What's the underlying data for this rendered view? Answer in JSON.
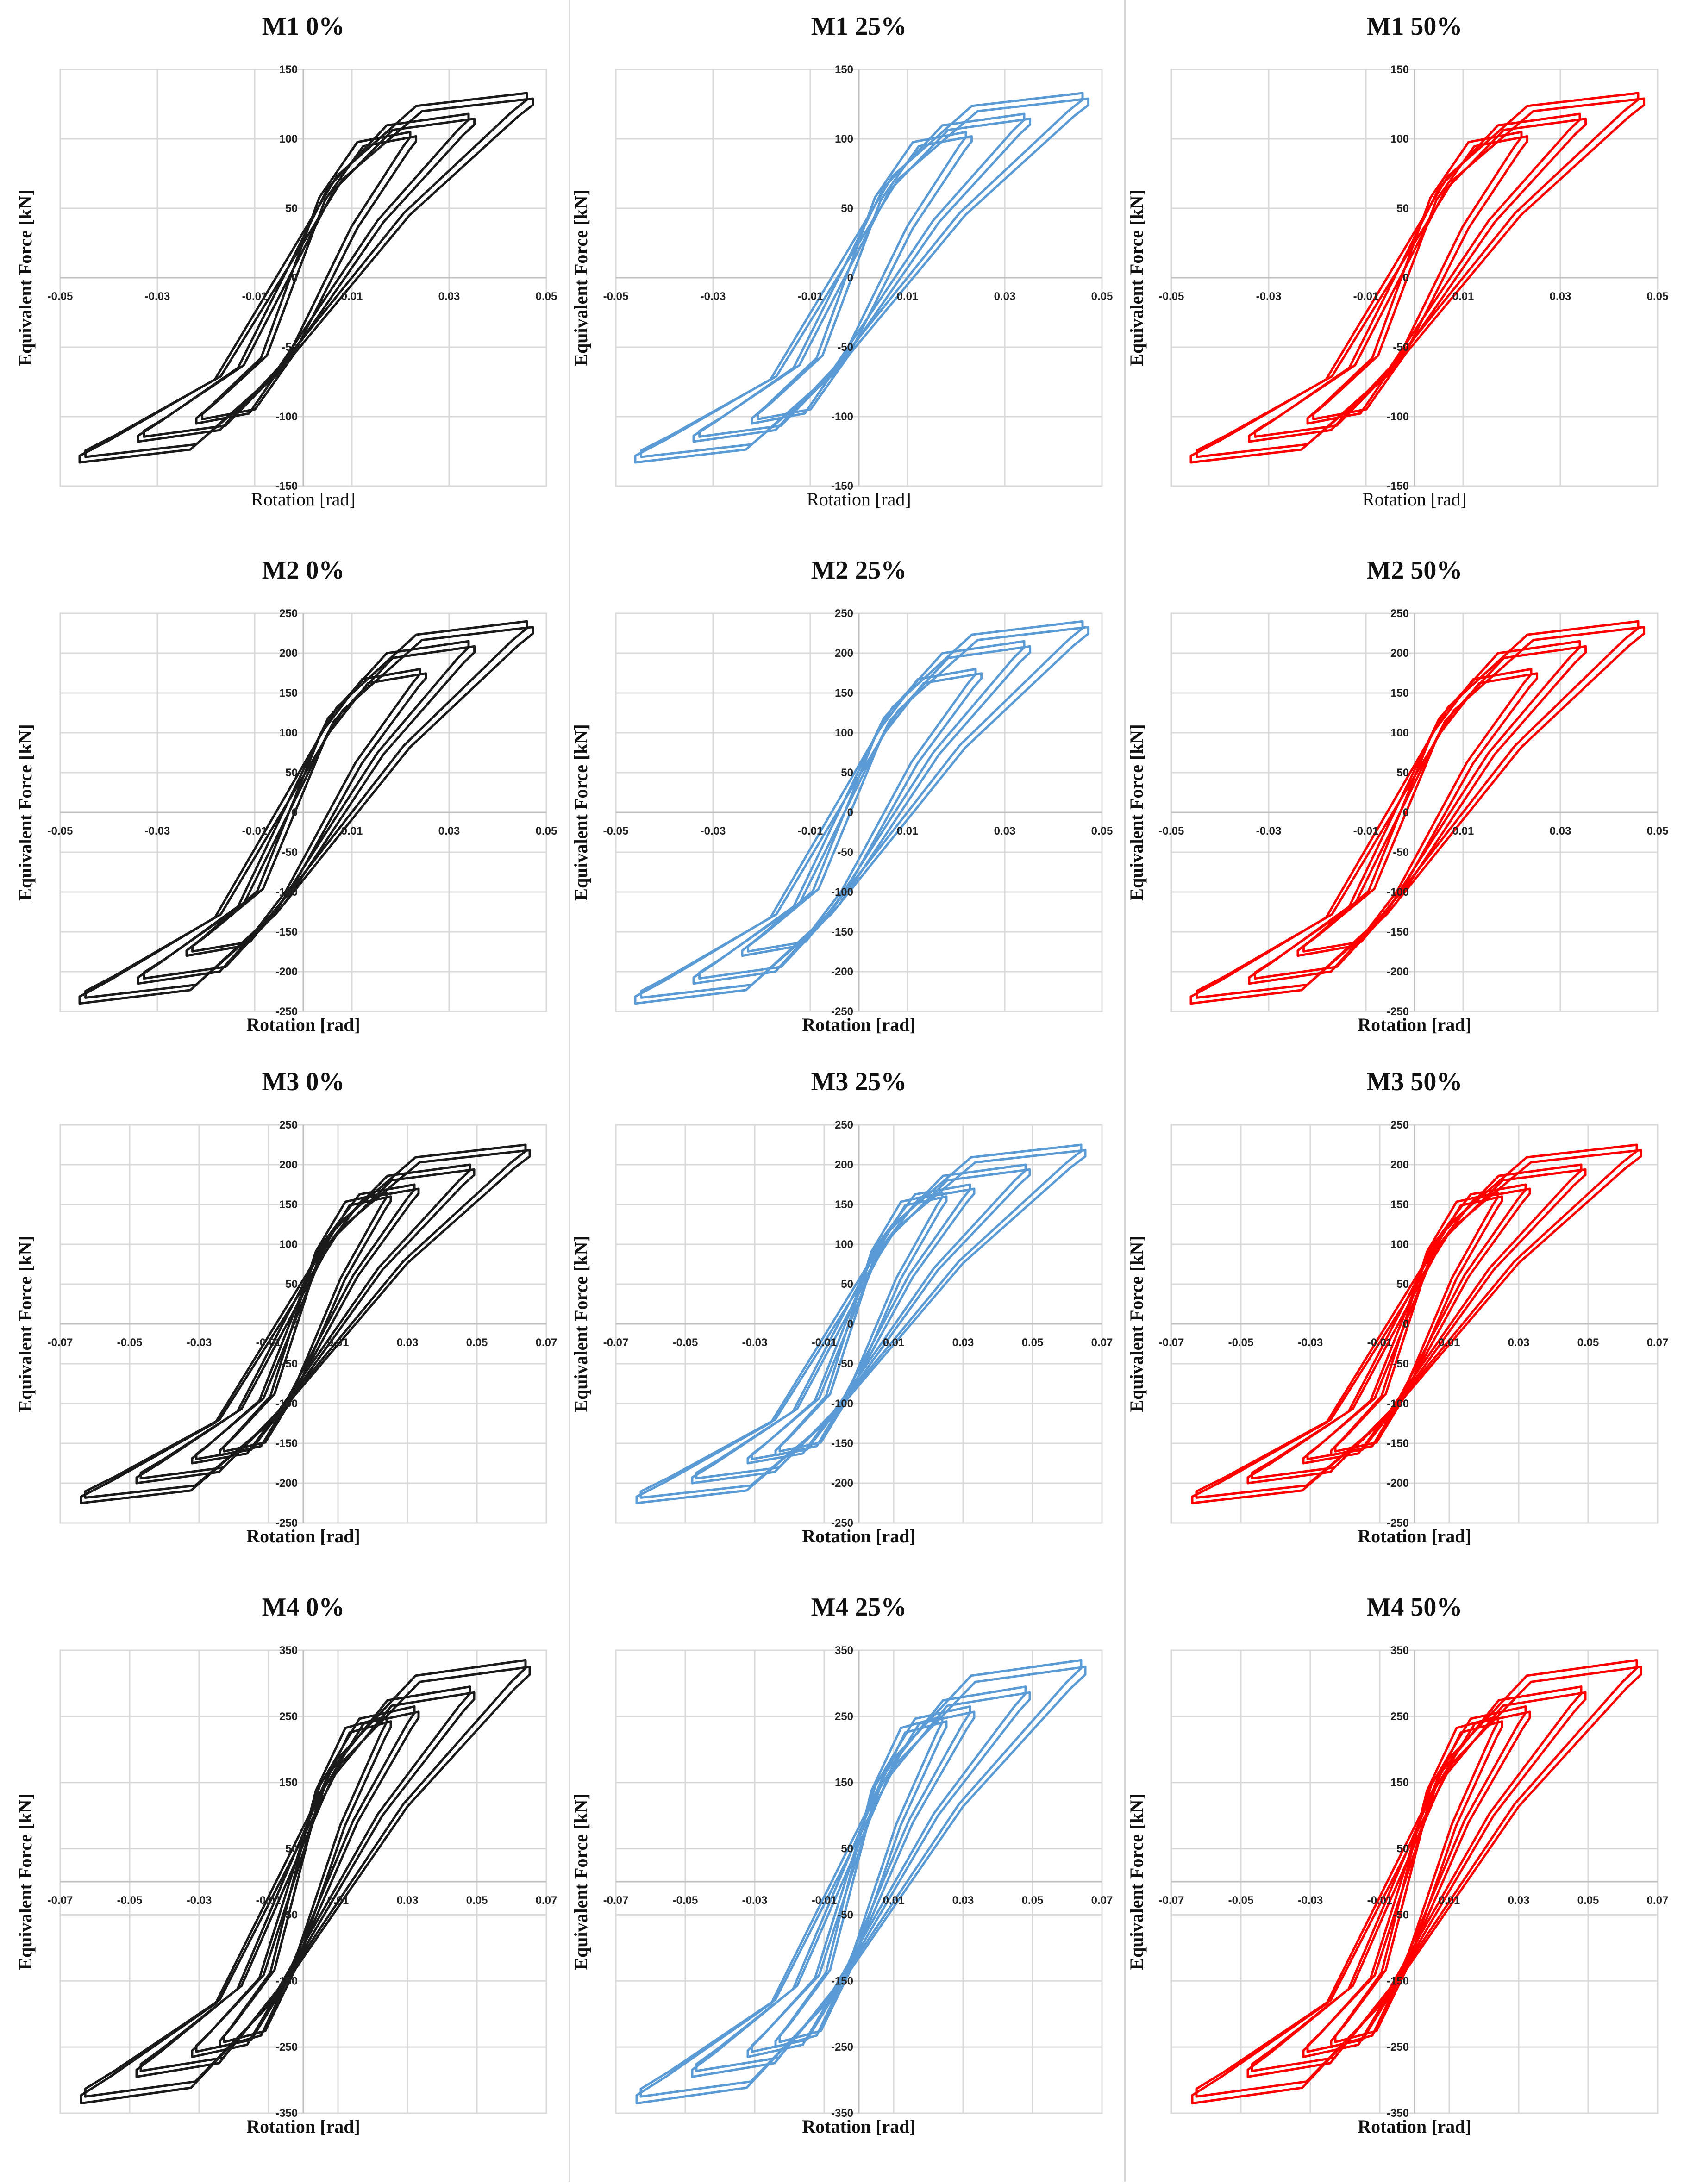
{
  "figure": {
    "colors": {
      "black": "#1a1a1a",
      "blue": "#5b9bd5",
      "red": "#ff0000",
      "grid": "#d9d9d9"
    },
    "ylabel": "Equivalent Force [kN]",
    "xlabel_bold": "Rotation [rad]",
    "xlabel_normal": "Rotation [rad]"
  },
  "chart_data": [
    {
      "type": "line",
      "title": "M1 0%",
      "model": "M1",
      "variant": "0%",
      "color": "black",
      "xlabel": "Rotation [rad]",
      "xlabel_style": "normal",
      "ylabel": "Equivalent Force [kN]",
      "xlim": [
        -0.05,
        0.05
      ],
      "ylim": [
        -150,
        150
      ],
      "xticks": [
        -0.05,
        -0.03,
        -0.01,
        0.01,
        0.03,
        0.05
      ],
      "xtick_labels": [
        "-0.05",
        "-0.03",
        "-0.01",
        "0.01",
        "0.03",
        "0.05"
      ],
      "yticks": [
        -150,
        -100,
        -50,
        0,
        50,
        100,
        150
      ],
      "ytick_labels": [
        "-150",
        "-100",
        "-50",
        "0",
        "50",
        "100",
        "150"
      ],
      "cycles": [
        {
          "amp": 0.022,
          "fmax": 105,
          "fmin": -105
        },
        {
          "amp": 0.034,
          "fmax": 118,
          "fmin": -118
        },
        {
          "amp": 0.046,
          "fmax": 133,
          "fmin": -133
        }
      ]
    },
    {
      "type": "line",
      "title": "M1 25%",
      "model": "M1",
      "variant": "25%",
      "color": "blue",
      "xlabel": "Rotation [rad]",
      "xlabel_style": "normal",
      "ylabel": "Equivalent Force [kN]",
      "xlim": [
        -0.05,
        0.05
      ],
      "ylim": [
        -150,
        150
      ],
      "xticks": [
        -0.05,
        -0.03,
        -0.01,
        0.01,
        0.03,
        0.05
      ],
      "xtick_labels": [
        "-0.05",
        "-0.03",
        "-0.01",
        "0.01",
        "0.03",
        "0.05"
      ],
      "yticks": [
        -150,
        -100,
        -50,
        0,
        50,
        100,
        150
      ],
      "ytick_labels": [
        "-150",
        "-100",
        "-50",
        "0",
        "50",
        "100",
        "150"
      ],
      "cycles": [
        {
          "amp": 0.022,
          "fmax": 105,
          "fmin": -105
        },
        {
          "amp": 0.034,
          "fmax": 118,
          "fmin": -118
        },
        {
          "amp": 0.046,
          "fmax": 133,
          "fmin": -133
        }
      ]
    },
    {
      "type": "line",
      "title": "M1 50%",
      "model": "M1",
      "variant": "50%",
      "color": "red",
      "xlabel": "Rotation [rad]",
      "xlabel_style": "normal",
      "ylabel": "Equivalent Force [kN]",
      "xlim": [
        -0.05,
        0.05
      ],
      "ylim": [
        -150,
        150
      ],
      "xticks": [
        -0.05,
        -0.03,
        -0.01,
        0.01,
        0.03,
        0.05
      ],
      "xtick_labels": [
        "-0.05",
        "-0.03",
        "-0.01",
        "0.01",
        "0.03",
        "0.05"
      ],
      "yticks": [
        -150,
        -100,
        -50,
        0,
        50,
        100,
        150
      ],
      "ytick_labels": [
        "-150",
        "-100",
        "-50",
        "0",
        "50",
        "100",
        "150"
      ],
      "cycles": [
        {
          "amp": 0.022,
          "fmax": 105,
          "fmin": -105
        },
        {
          "amp": 0.034,
          "fmax": 118,
          "fmin": -118
        },
        {
          "amp": 0.046,
          "fmax": 133,
          "fmin": -133
        }
      ]
    },
    {
      "type": "line",
      "title": "M2 0%",
      "model": "M2",
      "variant": "0%",
      "color": "black",
      "xlabel": "Rotation [rad]",
      "xlabel_style": "bold",
      "ylabel": "Equivalent Force [kN]",
      "xlim": [
        -0.05,
        0.05
      ],
      "ylim": [
        -250,
        250
      ],
      "xticks": [
        -0.05,
        -0.03,
        -0.01,
        0.01,
        0.03,
        0.05
      ],
      "xtick_labels": [
        "-0.05",
        "-0.03",
        "-0.01",
        "0.01",
        "0.03",
        "0.05"
      ],
      "yticks": [
        -250,
        -200,
        -150,
        -100,
        -50,
        0,
        50,
        100,
        150,
        200,
        250
      ],
      "ytick_labels": [
        "-250",
        "-200",
        "-150",
        "-100",
        "-50",
        "0",
        "50",
        "100",
        "150",
        "200",
        "250"
      ],
      "cycles": [
        {
          "amp": 0.024,
          "fmax": 180,
          "fmin": -180
        },
        {
          "amp": 0.034,
          "fmax": 215,
          "fmin": -215
        },
        {
          "amp": 0.046,
          "fmax": 240,
          "fmin": -240
        }
      ]
    },
    {
      "type": "line",
      "title": "M2 25%",
      "model": "M2",
      "variant": "25%",
      "color": "blue",
      "xlabel": "Rotation [rad]",
      "xlabel_style": "bold",
      "ylabel": "Equivalent Force [kN]",
      "xlim": [
        -0.05,
        0.05
      ],
      "ylim": [
        -250,
        250
      ],
      "xticks": [
        -0.05,
        -0.03,
        -0.01,
        0.01,
        0.03,
        0.05
      ],
      "xtick_labels": [
        "-0.05",
        "-0.03",
        "-0.01",
        "0.01",
        "0.03",
        "0.05"
      ],
      "yticks": [
        -250,
        -200,
        -150,
        -100,
        -50,
        0,
        50,
        100,
        150,
        200,
        250
      ],
      "ytick_labels": [
        "-250",
        "-200",
        "-150",
        "-100",
        "-50",
        "0",
        "50",
        "100",
        "150",
        "200",
        "250"
      ],
      "cycles": [
        {
          "amp": 0.024,
          "fmax": 180,
          "fmin": -180
        },
        {
          "amp": 0.034,
          "fmax": 215,
          "fmin": -215
        },
        {
          "amp": 0.046,
          "fmax": 240,
          "fmin": -240
        }
      ]
    },
    {
      "type": "line",
      "title": "M2 50%",
      "model": "M2",
      "variant": "50%",
      "color": "red",
      "xlabel": "Rotation [rad]",
      "xlabel_style": "bold",
      "ylabel": "Equivalent Force [kN]",
      "xlim": [
        -0.05,
        0.05
      ],
      "ylim": [
        -250,
        250
      ],
      "xticks": [
        -0.05,
        -0.03,
        -0.01,
        0.01,
        0.03,
        0.05
      ],
      "xtick_labels": [
        "-0.05",
        "-0.03",
        "-0.01",
        "0.01",
        "0.03",
        "0.05"
      ],
      "yticks": [
        -250,
        -200,
        -150,
        -100,
        -50,
        0,
        50,
        100,
        150,
        200,
        250
      ],
      "ytick_labels": [
        "-250",
        "-200",
        "-150",
        "-100",
        "-50",
        "0",
        "50",
        "100",
        "150",
        "200",
        "250"
      ],
      "cycles": [
        {
          "amp": 0.024,
          "fmax": 180,
          "fmin": -180
        },
        {
          "amp": 0.034,
          "fmax": 215,
          "fmin": -215
        },
        {
          "amp": 0.046,
          "fmax": 240,
          "fmin": -240
        }
      ]
    },
    {
      "type": "line",
      "title": "M3 0%",
      "model": "M3",
      "variant": "0%",
      "color": "black",
      "xlabel": "Rotation [rad]",
      "xlabel_style": "bold",
      "ylabel": "Equivalent Force [kN]",
      "xlim": [
        -0.07,
        0.07
      ],
      "ylim": [
        -250,
        250
      ],
      "xticks": [
        -0.07,
        -0.05,
        -0.03,
        -0.01,
        0.01,
        0.03,
        0.05,
        0.07
      ],
      "xtick_labels": [
        "-0.07",
        "-0.05",
        "-0.03",
        "-0.01",
        "0.01",
        "0.03",
        "0.05",
        "0.07"
      ],
      "yticks": [
        -250,
        -200,
        -150,
        -100,
        -50,
        0,
        50,
        100,
        150,
        200,
        250
      ],
      "ytick_labels": [
        "-250",
        "-200",
        "-150",
        "-100",
        "-50",
        "0",
        "50",
        "100",
        "150",
        "200",
        "250"
      ],
      "cycles": [
        {
          "amp": 0.024,
          "fmax": 165,
          "fmin": -165
        },
        {
          "amp": 0.032,
          "fmax": 175,
          "fmin": -175
        },
        {
          "amp": 0.048,
          "fmax": 200,
          "fmin": -200
        },
        {
          "amp": 0.064,
          "fmax": 225,
          "fmin": -225
        }
      ]
    },
    {
      "type": "line",
      "title": "M3 25%",
      "model": "M3",
      "variant": "25%",
      "color": "blue",
      "xlabel": "Rotation [rad]",
      "xlabel_style": "bold",
      "ylabel": "Equivalent Force [kN]",
      "xlim": [
        -0.07,
        0.07
      ],
      "ylim": [
        -250,
        250
      ],
      "xticks": [
        -0.07,
        -0.05,
        -0.03,
        -0.01,
        0.01,
        0.03,
        0.05,
        0.07
      ],
      "xtick_labels": [
        "-0.07",
        "-0.05",
        "-0.03",
        "-0.01",
        "0.01",
        "0.03",
        "0.05",
        "0.07"
      ],
      "yticks": [
        -250,
        -200,
        -150,
        -100,
        -50,
        0,
        50,
        100,
        150,
        200,
        250
      ],
      "ytick_labels": [
        "-250",
        "-200",
        "-150",
        "-100",
        "-50",
        "0",
        "50",
        "100",
        "150",
        "200",
        "250"
      ],
      "cycles": [
        {
          "amp": 0.024,
          "fmax": 165,
          "fmin": -165
        },
        {
          "amp": 0.032,
          "fmax": 175,
          "fmin": -175
        },
        {
          "amp": 0.048,
          "fmax": 200,
          "fmin": -200
        },
        {
          "amp": 0.064,
          "fmax": 225,
          "fmin": -225
        }
      ]
    },
    {
      "type": "line",
      "title": "M3 50%",
      "model": "M3",
      "variant": "50%",
      "color": "red",
      "xlabel": "Rotation [rad]",
      "xlabel_style": "bold",
      "ylabel": "Equivalent Force [kN]",
      "xlim": [
        -0.07,
        0.07
      ],
      "ylim": [
        -250,
        250
      ],
      "xticks": [
        -0.07,
        -0.05,
        -0.03,
        -0.01,
        0.01,
        0.03,
        0.05,
        0.07
      ],
      "xtick_labels": [
        "-0.07",
        "-0.05",
        "-0.03",
        "-0.01",
        "0.01",
        "0.03",
        "0.05",
        "0.07"
      ],
      "yticks": [
        -250,
        -200,
        -150,
        -100,
        -50,
        0,
        50,
        100,
        150,
        200,
        250
      ],
      "ytick_labels": [
        "-250",
        "-200",
        "-150",
        "-100",
        "-50",
        "0",
        "50",
        "100",
        "150",
        "200",
        "250"
      ],
      "cycles": [
        {
          "amp": 0.024,
          "fmax": 165,
          "fmin": -165
        },
        {
          "amp": 0.032,
          "fmax": 175,
          "fmin": -175
        },
        {
          "amp": 0.048,
          "fmax": 200,
          "fmin": -200
        },
        {
          "amp": 0.064,
          "fmax": 225,
          "fmin": -225
        }
      ]
    },
    {
      "type": "line",
      "title": "M4 0%",
      "model": "M4",
      "variant": "0%",
      "color": "black",
      "xlabel": "Rotation [rad]",
      "xlabel_style": "bold",
      "ylabel": "Equivalent Force [kN]",
      "xlim": [
        -0.07,
        0.07
      ],
      "ylim": [
        -350,
        350
      ],
      "xticks": [
        -0.07,
        -0.05,
        -0.03,
        -0.01,
        0.01,
        0.03,
        0.05,
        0.07
      ],
      "xtick_labels": [
        "-0.07",
        "-0.05",
        "-0.03",
        "-0.01",
        "0.01",
        "0.03",
        "0.05",
        "0.07"
      ],
      "yticks": [
        -350,
        -250,
        -150,
        -50,
        50,
        150,
        250,
        350
      ],
      "ytick_labels": [
        "-350",
        "-250",
        "-150",
        "-50",
        "50",
        "150",
        "250",
        "350"
      ],
      "cycles": [
        {
          "amp": 0.024,
          "fmax": 250,
          "fmin": -250
        },
        {
          "amp": 0.032,
          "fmax": 265,
          "fmin": -265
        },
        {
          "amp": 0.048,
          "fmax": 295,
          "fmin": -295
        },
        {
          "amp": 0.064,
          "fmax": 335,
          "fmin": -335
        }
      ]
    },
    {
      "type": "line",
      "title": "M4 25%",
      "model": "M4",
      "variant": "25%",
      "color": "blue",
      "xlabel": "Rotation [rad]",
      "xlabel_style": "bold",
      "ylabel": "Equivalent Force [kN]",
      "xlim": [
        -0.07,
        0.07
      ],
      "ylim": [
        -350,
        350
      ],
      "xticks": [
        -0.07,
        -0.05,
        -0.03,
        -0.01,
        0.01,
        0.03,
        0.05,
        0.07
      ],
      "xtick_labels": [
        "-0.07",
        "-0.05",
        "-0.03",
        "-0.01",
        "0.01",
        "0.03",
        "0.05",
        "0.07"
      ],
      "yticks": [
        -350,
        -250,
        -150,
        -50,
        50,
        150,
        250,
        350
      ],
      "ytick_labels": [
        "-350",
        "-250",
        "-150",
        "-50",
        "50",
        "150",
        "250",
        "350"
      ],
      "cycles": [
        {
          "amp": 0.024,
          "fmax": 250,
          "fmin": -250
        },
        {
          "amp": 0.032,
          "fmax": 265,
          "fmin": -265
        },
        {
          "amp": 0.048,
          "fmax": 295,
          "fmin": -295
        },
        {
          "amp": 0.064,
          "fmax": 335,
          "fmin": -335
        }
      ]
    },
    {
      "type": "line",
      "title": "M4 50%",
      "model": "M4",
      "variant": "50%",
      "color": "red",
      "xlabel": "Rotation [rad]",
      "xlabel_style": "bold",
      "ylabel": "Equivalent Force [kN]",
      "xlim": [
        -0.07,
        0.07
      ],
      "ylim": [
        -350,
        350
      ],
      "xticks": [
        -0.07,
        -0.05,
        -0.03,
        -0.01,
        0.01,
        0.03,
        0.05,
        0.07
      ],
      "xtick_labels": [
        "-0.07",
        "-0.05",
        "-0.03",
        "-0.01",
        "0.01",
        "0.03",
        "0.05",
        "0.07"
      ],
      "yticks": [
        -350,
        -250,
        -150,
        -50,
        50,
        150,
        250,
        350
      ],
      "ytick_labels": [
        "-350",
        "-250",
        "-150",
        "-50",
        "50",
        "150",
        "250",
        "350"
      ],
      "cycles": [
        {
          "amp": 0.024,
          "fmax": 250,
          "fmin": -250
        },
        {
          "amp": 0.032,
          "fmax": 265,
          "fmin": -265
        },
        {
          "amp": 0.048,
          "fmax": 295,
          "fmin": -295
        },
        {
          "amp": 0.064,
          "fmax": 335,
          "fmin": -335
        }
      ]
    }
  ]
}
